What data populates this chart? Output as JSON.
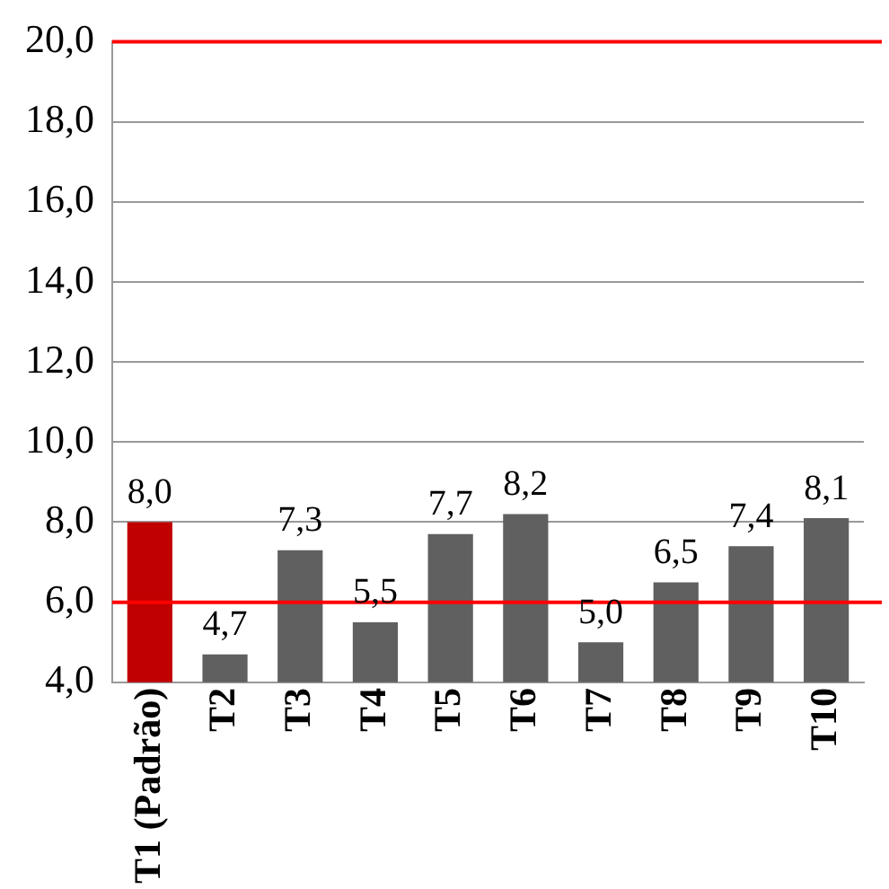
{
  "chart_data": {
    "type": "bar",
    "categories": [
      "T1 (Padrão)",
      "T2",
      "T3",
      "T4",
      "T5",
      "T6",
      "T7",
      "T8",
      "T9",
      "T10"
    ],
    "values": [
      8.0,
      4.7,
      7.3,
      5.5,
      7.7,
      8.2,
      5.0,
      6.5,
      7.4,
      8.1
    ],
    "colors": [
      "#c00000",
      "#606060",
      "#606060",
      "#606060",
      "#606060",
      "#606060",
      "#606060",
      "#606060",
      "#606060",
      "#606060"
    ],
    "value_labels": [
      "8,0",
      "4,7",
      "7,3",
      "5,5",
      "7,7",
      "8,2",
      "5,0",
      "6,5",
      "7,4",
      "8,1"
    ],
    "ylim": [
      4,
      20
    ],
    "yticks": [
      {
        "value": 4,
        "label": "4,0"
      },
      {
        "value": 6,
        "label": "6,0"
      },
      {
        "value": 8,
        "label": "8,0"
      },
      {
        "value": 10,
        "label": "10,0"
      },
      {
        "value": 12,
        "label": "12,0"
      },
      {
        "value": 14,
        "label": "14,0"
      },
      {
        "value": 16,
        "label": "16,0"
      },
      {
        "value": 18,
        "label": "18,0"
      },
      {
        "value": 20,
        "label": "20,0"
      }
    ],
    "ref_lines": [
      {
        "axis": "y",
        "value": 6,
        "color": "#ff0000"
      },
      {
        "axis": "y",
        "value": 20,
        "color": "#ff0000"
      }
    ],
    "grid": "y",
    "legend": false
  }
}
